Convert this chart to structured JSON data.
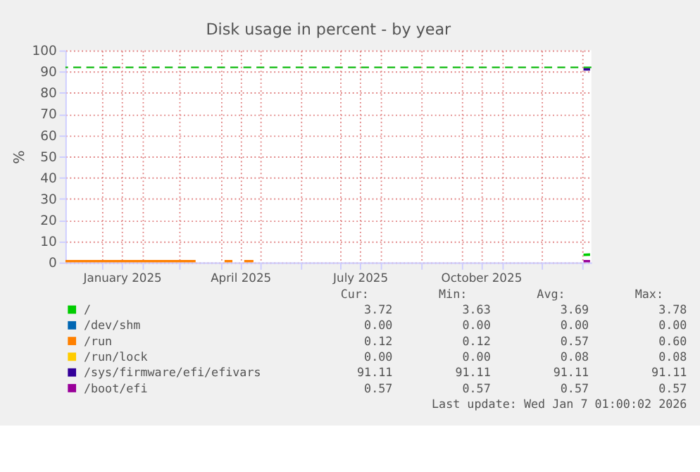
{
  "chart_data": {
    "type": "line",
    "title": "Disk usage in percent - by year",
    "ylabel": "%",
    "xlim": [
      "2024-12-04",
      "2026-01-08"
    ],
    "ylim": [
      0,
      100
    ],
    "yticks": [
      0,
      10,
      20,
      30,
      40,
      50,
      60,
      70,
      80,
      90,
      100
    ],
    "xticks": [
      {
        "value": "2025-01-01",
        "label": null
      },
      {
        "value": "2025-01-16",
        "label": "January 2025"
      },
      {
        "value": "2025-02-01",
        "label": null
      },
      {
        "value": "2025-03-01",
        "label": null
      },
      {
        "value": "2025-04-01",
        "label": null
      },
      {
        "value": "2025-04-16",
        "label": "April 2025"
      },
      {
        "value": "2025-05-01",
        "label": null
      },
      {
        "value": "2025-06-01",
        "label": null
      },
      {
        "value": "2025-07-01",
        "label": null
      },
      {
        "value": "2025-07-16",
        "label": "July 2025"
      },
      {
        "value": "2025-08-01",
        "label": null
      },
      {
        "value": "2025-09-01",
        "label": null
      },
      {
        "value": "2025-10-01",
        "label": null
      },
      {
        "value": "2025-10-16",
        "label": "October 2025"
      },
      {
        "value": "2025-11-01",
        "label": null
      },
      {
        "value": "2025-12-01",
        "label": null
      },
      {
        "value": "2026-01-01",
        "label": null
      }
    ],
    "grid": true,
    "legend": "bottom",
    "line_style": "solid",
    "ref_lines": [
      {
        "axis": "y",
        "value": 92,
        "label": null,
        "color": "#11bb11",
        "line_style": "dashed"
      }
    ],
    "series": [
      {
        "name": "/",
        "color": "#00cc00",
        "x": [
          "2026-01-02",
          "2026-01-07"
        ],
        "values": [
          3.6,
          3.7
        ]
      },
      {
        "name": "/dev/shm",
        "color": "#0066b3",
        "values": [
          null
        ]
      },
      {
        "name": "/run",
        "color": "#ff8000",
        "x": [
          "2024-12-04",
          "2025-03-13",
          "2025-03-20",
          "2025-04-04",
          "2025-04-10",
          "2025-04-16",
          "2025-04-19",
          "2025-04-26"
        ],
        "values": [
          0.6,
          0.6,
          null,
          0.6,
          0.6,
          null,
          0.6,
          0.6
        ]
      },
      {
        "name": "/run/lock",
        "color": "#ffcc00",
        "values": [
          null
        ]
      },
      {
        "name": "/sys/firmware/efi/efivars",
        "color": "#330099",
        "x": [
          "2026-01-02",
          "2026-01-07"
        ],
        "values": [
          91.1,
          91.1
        ]
      },
      {
        "name": "/boot/efi",
        "color": "#990099",
        "x": [
          "2026-01-02",
          "2026-01-07"
        ],
        "values": [
          0.6,
          0.6
        ]
      }
    ],
    "annotations": [
      "Cur:",
      "Min:",
      "Avg:",
      "Max:",
      "3.72",
      "3.63",
      "3.69",
      "3.78",
      "0.00",
      "0.00",
      "0.00",
      "0.00",
      "0.12",
      "0.12",
      "0.57",
      "0.60",
      "0.00",
      "0.00",
      "0.08",
      "0.08",
      "91.11",
      "91.11",
      "91.11",
      "91.11",
      "0.57",
      "0.57",
      "0.57",
      "0.57",
      "Last update: Wed Jan  7 01:00:02 2026"
    ]
  }
}
